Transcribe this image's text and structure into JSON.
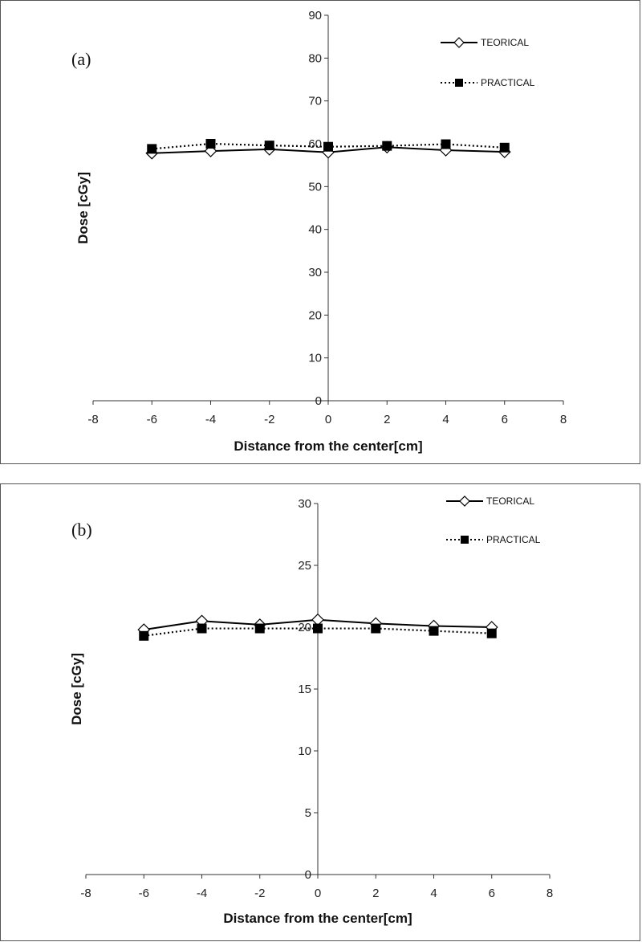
{
  "chart_data": [
    {
      "type": "line",
      "panel_label": "(a)",
      "xlabel": "Distance from the center[cm]",
      "ylabel": "Dose [cGy]",
      "xlim": [
        -8,
        8
      ],
      "ylim": [
        0,
        90
      ],
      "xticks": [
        "-8",
        "-6",
        "-4",
        "-2",
        "0",
        "2",
        "4",
        "6",
        "8"
      ],
      "yticks": [
        "0",
        "10",
        "20",
        "30",
        "40",
        "50",
        "60",
        "70",
        "80",
        "90"
      ],
      "grid": false,
      "legend_position": "top-right",
      "x": [
        -6,
        -4,
        -2,
        0,
        2,
        4,
        6
      ],
      "series": [
        {
          "name": "TEORICAL",
          "style": "solid",
          "marker": "open-diamond",
          "color": "#000000",
          "values": [
            57.8,
            58.3,
            58.7,
            58.0,
            59.2,
            58.5,
            58.1
          ]
        },
        {
          "name": "PRACTICAL",
          "style": "dotted",
          "marker": "filled-square",
          "color": "#000000",
          "values": [
            58.8,
            60.0,
            59.6,
            59.3,
            59.5,
            59.9,
            59.1
          ]
        }
      ]
    },
    {
      "type": "line",
      "panel_label": "(b)",
      "xlabel": "Distance from the center[cm]",
      "ylabel": "Dose [cGy]",
      "xlim": [
        -8,
        8
      ],
      "ylim": [
        0,
        30
      ],
      "xticks": [
        "-8",
        "-6",
        "-4",
        "-2",
        "0",
        "2",
        "4",
        "6",
        "8"
      ],
      "yticks": [
        "0",
        "5",
        "10",
        "15",
        "20",
        "25",
        "30"
      ],
      "grid": false,
      "legend_position": "top-right",
      "x": [
        -6,
        -4,
        -2,
        0,
        2,
        4,
        6
      ],
      "series": [
        {
          "name": "TEORICAL",
          "style": "solid",
          "marker": "open-diamond",
          "color": "#000000",
          "values": [
            19.8,
            20.5,
            20.2,
            20.6,
            20.3,
            20.1,
            20.0
          ]
        },
        {
          "name": "PRACTICAL",
          "style": "dotted",
          "marker": "filled-square",
          "color": "#000000",
          "values": [
            19.3,
            19.9,
            19.9,
            19.9,
            19.9,
            19.7,
            19.5
          ]
        }
      ]
    }
  ]
}
